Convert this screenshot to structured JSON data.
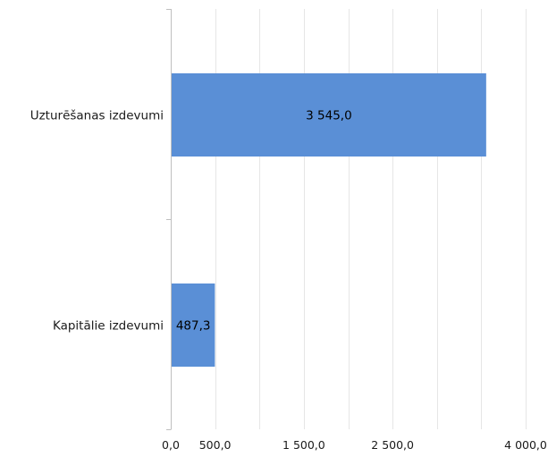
{
  "chart_data": {
    "type": "bar",
    "orientation": "horizontal",
    "title": "",
    "categories": [
      "Uzturēšanas izdevumi",
      "Kapitālie izdevumi"
    ],
    "values": [
      3545.0,
      487.3
    ],
    "value_labels": [
      "3 545,0",
      "487,3"
    ],
    "x_ticks": [
      0,
      500,
      1500,
      2500,
      4000
    ],
    "x_tick_labels": [
      "0,0",
      "500,0",
      "1 500,0",
      "2 500,0",
      "4 000,0"
    ],
    "xlim": [
      0,
      4000
    ],
    "xlabel": "",
    "ylabel": "",
    "grid": true,
    "legend": "none",
    "colors": {
      "bar": "#5a8fd6",
      "grid": "#e6e6e6",
      "axis": "#bfbfbf"
    }
  }
}
